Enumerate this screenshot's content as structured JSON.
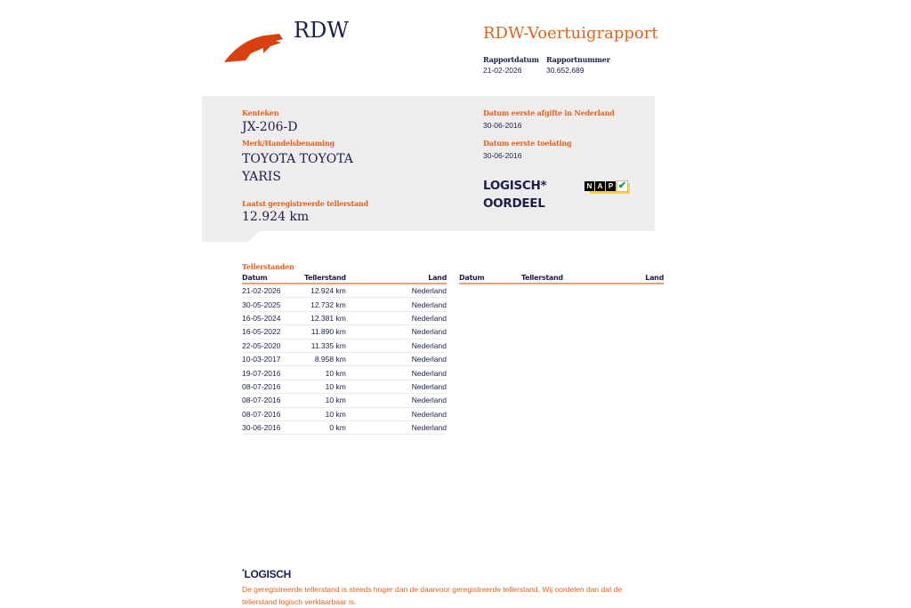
{
  "header": {
    "logo_text": "RDW",
    "title": "RDW-Voertuigrapport",
    "report_date_label": "Rapportdatum",
    "report_date": "21-02-2026",
    "report_number_label": "Rapportnummer",
    "report_number": "30.652.689"
  },
  "vehicle": {
    "plate_label": "Kenteken",
    "plate": "JX-206-D",
    "make_label": "Merk/Handelsbenaming",
    "make_line1": "TOYOTA TOYOTA",
    "make_line2": "YARIS",
    "odo_label": "Laatst geregistreerde tellerstand",
    "odo": "12.924 km",
    "first_nl_label": "Datum eerste afgifte in Nederland",
    "first_nl": "30-06-2016",
    "first_adm_label": "Datum eerste toelating",
    "first_adm": "30-06-2016",
    "verdict_line1": "LOGISCH*",
    "verdict_line2": "OORDEEL",
    "nap_letters": [
      "N",
      "A",
      "P"
    ],
    "nap_colors": {
      "check": "#1a9a3a",
      "bar": "#f3d23c"
    }
  },
  "readings": {
    "title": "Tellerstanden",
    "columns": [
      "Datum",
      "Tellerstand",
      "Land"
    ],
    "rows": [
      [
        "21-02-2026",
        "12.924 km",
        "Nederland"
      ],
      [
        "30-05-2025",
        "12.732 km",
        "Nederland"
      ],
      [
        "16-05-2024",
        "12.381 km",
        "Nederland"
      ],
      [
        "16-05-2022",
        "11.890 km",
        "Nederland"
      ],
      [
        "22-05-2020",
        "11.335 km",
        "Nederland"
      ],
      [
        "10-03-2017",
        "8.958 km",
        "Nederland"
      ],
      [
        "19-07-2016",
        "10 km",
        "Nederland"
      ],
      [
        "08-07-2016",
        "10 km",
        "Nederland"
      ],
      [
        "08-07-2016",
        "10 km",
        "Nederland"
      ],
      [
        "08-07-2016",
        "10 km",
        "Nederland"
      ],
      [
        "30-06-2016",
        "0 km",
        "Nederland"
      ]
    ]
  },
  "footer": {
    "star": "*",
    "title": "LOGISCH",
    "text": "De geregistreerde tellerstand is steeds hoger dan de daarvoor geregistreerde tellerstand. Wij oordelen dan dat de tellerstand logisch verklaarbaar is."
  },
  "colors": {
    "accent": "#e3621c",
    "navy": "#1b1f4b",
    "panel": "#efeced"
  }
}
